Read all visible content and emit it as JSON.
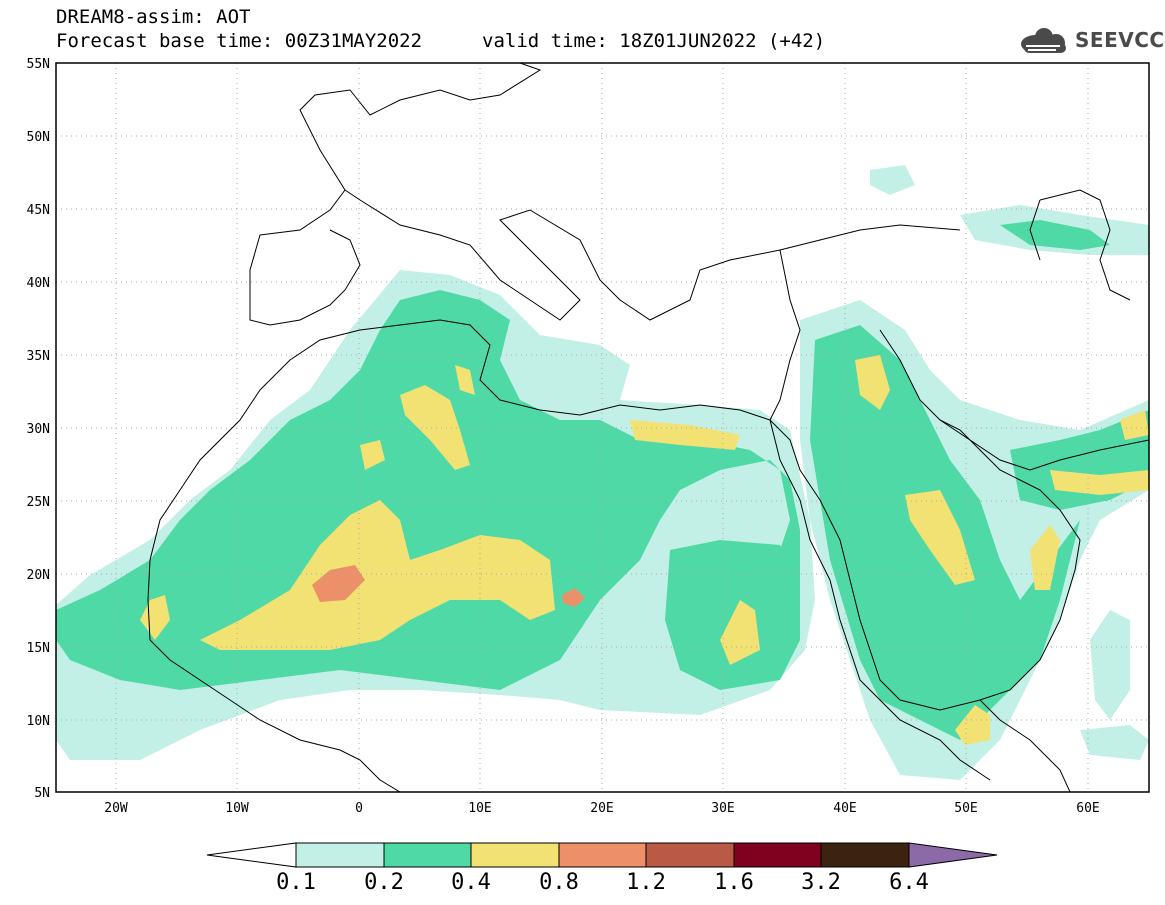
{
  "header": {
    "title": "DREAM8-assim: AOT",
    "forecast_base": "Forecast base time: 00Z31MAY2022",
    "valid_time": "valid time: 18Z01JUN2022 (+42)"
  },
  "logo": {
    "icon": "cloud-icon",
    "text": "SEEVCCC"
  },
  "map": {
    "lat_labels": [
      "55N",
      "50N",
      "45N",
      "40N",
      "35N",
      "30N",
      "25N",
      "20N",
      "15N",
      "10N",
      "5N"
    ],
    "lon_labels": [
      "20W",
      "10W",
      "0",
      "10E",
      "20E",
      "30E",
      "40E",
      "50E",
      "60E"
    ],
    "lat_range": [
      5,
      55
    ],
    "lon_range": [
      -25,
      65
    ],
    "grid": "dotted"
  },
  "colorbar": {
    "labels": [
      "0.1",
      "0.2",
      "0.4",
      "0.8",
      "1.2",
      "1.6",
      "3.2",
      "6.4"
    ],
    "colors": [
      "#ffffff",
      "#c2f0e6",
      "#4fd9a6",
      "#f2e173",
      "#eb9069",
      "#b85a46",
      "#800020",
      "#3b2310",
      "#8c6aa8"
    ]
  },
  "colors": {
    "level1": "#c2f0e6",
    "level2": "#4fd9a6",
    "level3": "#f2e173",
    "level4": "#eb9069",
    "border": "#000000"
  }
}
